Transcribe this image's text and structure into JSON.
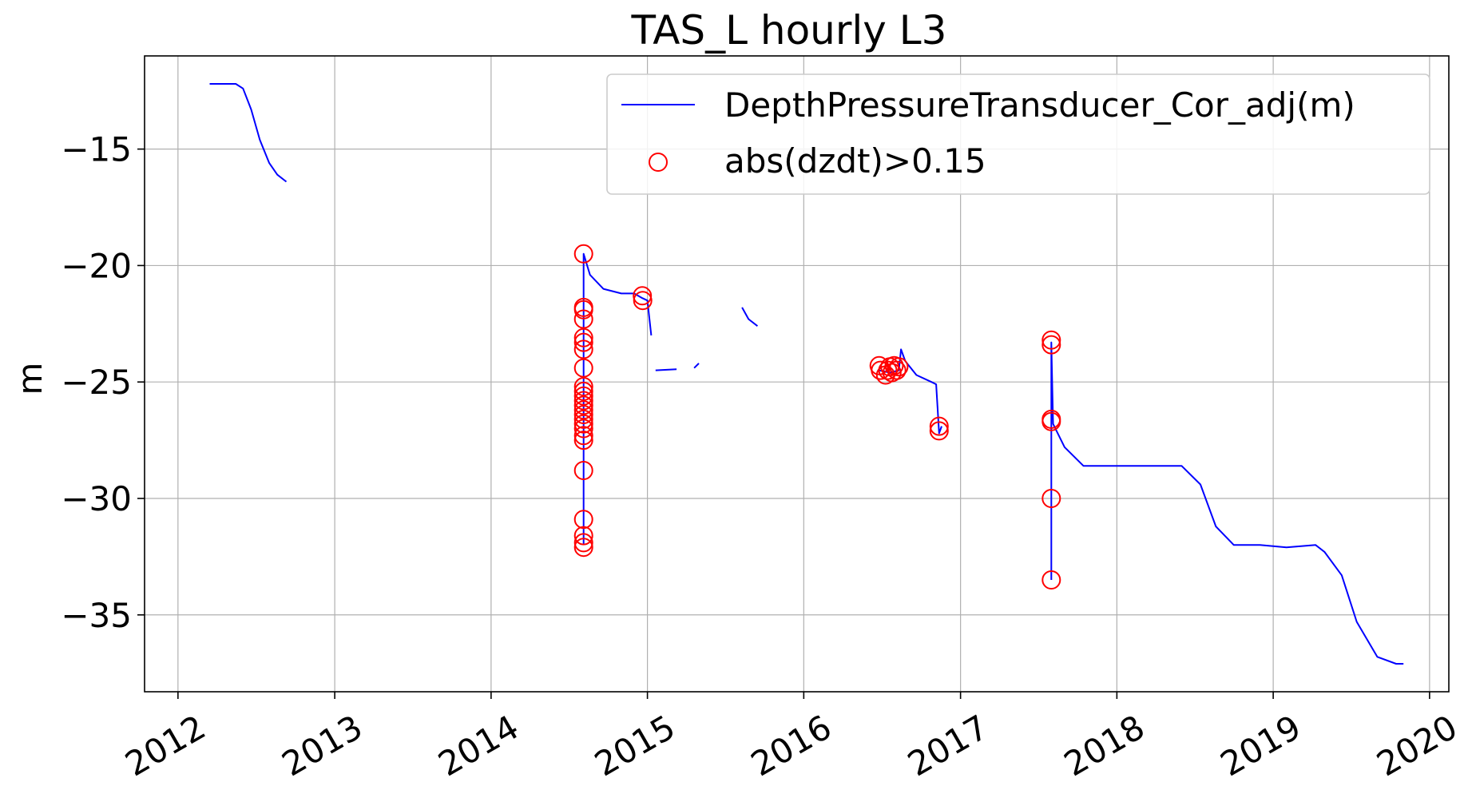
{
  "chart_data": {
    "type": "line",
    "title": "TAS_L hourly L3",
    "xlabel": "",
    "ylabel": "m",
    "xlim": [
      "2011-10-15",
      "2020-02-15"
    ],
    "ylim": [
      -38.3,
      -11.0
    ],
    "x_ticks": [
      "2012",
      "2013",
      "2014",
      "2015",
      "2016",
      "2017",
      "2018",
      "2019",
      "2020"
    ],
    "y_ticks": [
      -15,
      -20,
      -25,
      -30,
      -35
    ],
    "y_tick_labels": [
      "−15",
      "−20",
      "−25",
      "−30",
      "−35"
    ],
    "grid": true,
    "legend_position": "top-right",
    "colors": {
      "line": "#0000ff",
      "markers": "#ff0000",
      "grid": "#b0b0b0"
    },
    "series": [
      {
        "name": "DepthPressureTransducer_Cor_adj(m)",
        "style": "line",
        "segments": [
          [
            [
              "2012-03-15",
              -12.2
            ],
            [
              "2012-04-15",
              -12.2
            ],
            [
              "2012-05-15",
              -12.2
            ],
            [
              "2012-06-01",
              -12.4
            ],
            [
              "2012-06-20",
              -13.3
            ],
            [
              "2012-07-10",
              -14.6
            ],
            [
              "2012-08-01",
              -15.6
            ],
            [
              "2012-08-20",
              -16.1
            ],
            [
              "2012-09-10",
              -16.4
            ]
          ],
          [
            [
              "2014-08-05",
              -32.0
            ],
            [
              "2014-08-05",
              -19.5
            ],
            [
              "2014-08-20",
              -20.4
            ],
            [
              "2014-09-20",
              -21.0
            ],
            [
              "2014-11-01",
              -21.2
            ],
            [
              "2014-12-01",
              -21.2
            ],
            [
              "2014-12-20",
              -21.4
            ],
            [
              "2015-01-01",
              -21.5
            ],
            [
              "2015-01-10",
              -23.0
            ]
          ],
          [
            [
              "2015-01-20",
              -24.5
            ],
            [
              "2015-03-10",
              -24.45
            ]
          ],
          [
            [
              "2015-04-20",
              -24.4
            ],
            [
              "2015-05-01",
              -24.2
            ]
          ],
          [
            [
              "2015-08-10",
              -21.8
            ],
            [
              "2015-08-25",
              -22.3
            ],
            [
              "2015-09-15",
              -22.6
            ]
          ],
          [
            [
              "2016-06-25",
              -24.5
            ],
            [
              "2016-07-20",
              -24.6
            ],
            [
              "2016-08-10",
              -24.5
            ],
            [
              "2016-08-15",
              -23.6
            ],
            [
              "2016-08-25",
              -24.1
            ],
            [
              "2016-09-20",
              -24.7
            ],
            [
              "2016-10-25",
              -25.0
            ],
            [
              "2016-11-05",
              -25.1
            ],
            [
              "2016-11-12",
              -27.2
            ],
            [
              "2016-11-18",
              -26.9
            ]
          ],
          [
            [
              "2017-08-01",
              -33.5
            ],
            [
              "2017-08-01",
              -23.3
            ],
            [
              "2017-08-05",
              -26.8
            ],
            [
              "2017-09-01",
              -27.8
            ],
            [
              "2017-10-15",
              -28.6
            ],
            [
              "2017-12-01",
              -28.6
            ],
            [
              "2018-03-01",
              -28.6
            ],
            [
              "2018-06-01",
              -28.6
            ],
            [
              "2018-07-15",
              -29.4
            ],
            [
              "2018-08-20",
              -31.2
            ],
            [
              "2018-10-01",
              -32.0
            ],
            [
              "2018-12-01",
              -32.0
            ],
            [
              "2019-02-01",
              -32.1
            ],
            [
              "2019-04-10",
              -32.0
            ],
            [
              "2019-05-01",
              -32.3
            ],
            [
              "2019-06-10",
              -33.3
            ],
            [
              "2019-07-15",
              -35.3
            ],
            [
              "2019-09-01",
              -36.8
            ],
            [
              "2019-10-15",
              -37.1
            ],
            [
              "2019-11-01",
              -37.1
            ]
          ]
        ]
      },
      {
        "name": "abs(dzdt)>0.15",
        "style": "markers",
        "points": [
          [
            "2014-08-05",
            -19.5
          ],
          [
            "2014-08-05",
            -21.8
          ],
          [
            "2014-08-05",
            -21.9
          ],
          [
            "2014-08-05",
            -22.3
          ],
          [
            "2014-08-05",
            -23.1
          ],
          [
            "2014-08-05",
            -23.3
          ],
          [
            "2014-08-05",
            -23.6
          ],
          [
            "2014-08-05",
            -24.4
          ],
          [
            "2014-08-05",
            -25.2
          ],
          [
            "2014-08-05",
            -25.4
          ],
          [
            "2014-08-05",
            -25.6
          ],
          [
            "2014-08-05",
            -25.8
          ],
          [
            "2014-08-05",
            -26.0
          ],
          [
            "2014-08-05",
            -26.2
          ],
          [
            "2014-08-05",
            -26.4
          ],
          [
            "2014-08-05",
            -26.6
          ],
          [
            "2014-08-05",
            -26.8
          ],
          [
            "2014-08-05",
            -27.0
          ],
          [
            "2014-08-05",
            -27.3
          ],
          [
            "2014-08-05",
            -27.5
          ],
          [
            "2014-08-05",
            -28.8
          ],
          [
            "2014-08-05",
            -30.9
          ],
          [
            "2014-08-05",
            -31.6
          ],
          [
            "2014-08-05",
            -31.9
          ],
          [
            "2014-08-05",
            -32.1
          ],
          [
            "2014-12-20",
            -21.3
          ],
          [
            "2014-12-21",
            -21.5
          ],
          [
            "2016-06-25",
            -24.3
          ],
          [
            "2016-06-28",
            -24.5
          ],
          [
            "2016-07-10",
            -24.7
          ],
          [
            "2016-07-15",
            -24.5
          ],
          [
            "2016-07-20",
            -24.35
          ],
          [
            "2016-07-25",
            -24.6
          ],
          [
            "2016-07-30",
            -24.3
          ],
          [
            "2016-08-05",
            -24.5
          ],
          [
            "2016-08-10",
            -24.35
          ],
          [
            "2016-11-12",
            -26.9
          ],
          [
            "2016-11-12",
            -27.1
          ],
          [
            "2017-08-01",
            -23.2
          ],
          [
            "2017-08-01",
            -23.4
          ],
          [
            "2017-08-01",
            -26.6
          ],
          [
            "2017-08-01",
            -26.7
          ],
          [
            "2017-08-01",
            -30.0
          ],
          [
            "2017-08-01",
            -33.5
          ]
        ]
      }
    ]
  }
}
